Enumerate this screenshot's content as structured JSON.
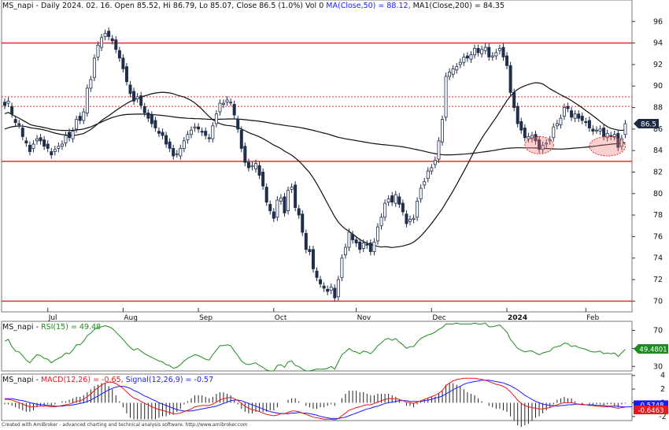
{
  "chart_data": [
    {
      "type": "candlestick",
      "panel": "price",
      "title": {
        "symbol_text": "MS_napi - Daily 2024. 02. 16. Open 85.52, Hi 86.79, Lo 85.07, Close 86.5 (1.0%) Vol 0",
        "ma50_text": "MA(Close,50) = 88.12,",
        "ma200_text": "MA1(Close,200) = 84.35"
      },
      "ylim": [
        69,
        98
      ],
      "y_ticks": [
        "70",
        "72",
        "74",
        "76",
        "78",
        "80",
        "82",
        "84",
        "86",
        "88",
        "90",
        "92",
        "94",
        "96"
      ],
      "x_tick_labels": [
        {
          "label": "Jul",
          "i": 12
        },
        {
          "label": "Aug",
          "i": 33
        },
        {
          "label": "Sep",
          "i": 54
        },
        {
          "label": "Oct",
          "i": 75
        },
        {
          "label": "Nov",
          "i": 98
        },
        {
          "label": "Dec",
          "i": 119
        },
        {
          "label": "2024",
          "i": 140,
          "bold": true
        },
        {
          "label": "Feb",
          "i": 162
        }
      ],
      "last_price_label": "86.5",
      "horizontal_lines": [
        {
          "y": 94.0,
          "style": "solid",
          "color": "#e03030"
        },
        {
          "y": 89.0,
          "style": "dotted",
          "color": "#e03030"
        },
        {
          "y": 88.1,
          "style": "dotted",
          "color": "#e03030"
        },
        {
          "y": 83.0,
          "style": "solid",
          "color": "#e03030"
        },
        {
          "y": 70.0,
          "style": "solid",
          "color": "#e03030"
        }
      ],
      "highlight_ellipses": [
        {
          "i": 149,
          "y": 84.5,
          "di": 4,
          "dy": 0.8
        },
        {
          "i": 168,
          "y": 84.4,
          "di": 5,
          "dy": 0.9
        }
      ],
      "close": [
        88.2,
        88.6,
        87.4,
        86.6,
        86.4,
        85.3,
        84.7,
        83.9,
        84.6,
        85.1,
        84.9,
        84.4,
        84.2,
        83.6,
        84.1,
        84.4,
        84.6,
        85.4,
        85.2,
        85.8,
        86.9,
        86.8,
        87.6,
        89.8,
        90.6,
        92.6,
        93.8,
        94.5,
        94.9,
        94.6,
        94.2,
        93.4,
        92.6,
        91.6,
        90.4,
        89.3,
        88.6,
        89.0,
        88.2,
        87.5,
        87.0,
        86.5,
        86.1,
        85.6,
        85.4,
        84.6,
        84.2,
        83.5,
        83.7,
        84.2,
        84.9,
        85.5,
        85.9,
        86.2,
        86.0,
        85.7,
        85.4,
        85.1,
        86.3,
        87.4,
        88.4,
        88.4,
        88.7,
        88.5,
        87.3,
        86.0,
        84.2,
        82.9,
        82.4,
        82.6,
        82.8,
        81.7,
        80.7,
        79.2,
        78.4,
        77.7,
        79.4,
        79.6,
        78.2,
        80.3,
        80.6,
        78.7,
        78.0,
        76.4,
        74.8,
        74.6,
        73.0,
        72.2,
        71.6,
        71.2,
        70.9,
        71.3,
        70.3,
        72.0,
        74.0,
        75.0,
        76.4,
        75.7,
        75.4,
        74.8,
        75.4,
        75.2,
        74.6,
        75.5,
        76.9,
        77.8,
        79.1,
        79.5,
        79.2,
        79.9,
        79.0,
        78.3,
        77.2,
        77.6,
        77.7,
        79.3,
        80.5,
        81.1,
        82.1,
        82.4,
        83.1,
        84.9,
        86.9,
        90.9,
        91.3,
        91.6,
        91.8,
        92.2,
        92.7,
        92.6,
        92.9,
        93.5,
        93.1,
        93.4,
        93.6,
        92.7,
        92.8,
        93.1,
        93.5,
        92.7,
        91.9,
        89.4,
        88.0,
        86.5,
        85.9,
        85.2,
        85.3,
        85.4,
        84.9,
        84.1,
        84.5,
        84.7,
        85.0,
        86.2,
        86.5,
        87.0,
        88.0,
        87.9,
        87.1,
        87.4,
        87.0,
        86.8,
        86.6,
        86.1,
        85.8,
        85.9,
        86.0,
        85.3,
        85.6,
        85.3,
        85.5,
        84.3,
        85.1,
        86.5
      ],
      "open": [
        88.5,
        88.4,
        88.1,
        86.9,
        86.5,
        86.1,
        84.9,
        84.5,
        84.2,
        84.9,
        85.2,
        85.0,
        84.6,
        83.9,
        83.9,
        84.2,
        84.4,
        84.7,
        85.7,
        85.1,
        86.0,
        87.2,
        86.8,
        87.5,
        89.8,
        90.8,
        92.7,
        93.6,
        94.6,
        95.1,
        94.4,
        94.3,
        93.3,
        92.6,
        91.8,
        90.1,
        89.5,
        88.8,
        89.1,
        88.1,
        87.5,
        87.3,
        86.8,
        85.8,
        85.7,
        85.4,
        84.8,
        84.2,
        83.7,
        83.5,
        84.2,
        85.0,
        85.5,
        86.1,
        86.2,
        85.8,
        85.8,
        85.2,
        85.1,
        86.5,
        87.6,
        88.3,
        88.5,
        88.5,
        88.3,
        86.9,
        85.9,
        84.4,
        82.9,
        82.5,
        82.3,
        82.6,
        82.0,
        80.6,
        79.0,
        78.3,
        77.8,
        79.3,
        79.7,
        78.4,
        80.4,
        80.8,
        78.6,
        78.1,
        76.3,
        74.8,
        74.8,
        72.8,
        72.0,
        71.4,
        71.1,
        71.0,
        71.2,
        70.4,
        72.2,
        74.3,
        75.0,
        76.2,
        75.7,
        75.5,
        74.9,
        75.3,
        75.4,
        74.6,
        75.6,
        77.0,
        77.8,
        79.2,
        79.8,
        79.1,
        79.7,
        79.1,
        78.1,
        77.4,
        77.6,
        77.8,
        79.5,
        80.8,
        81.4,
        82.1,
        82.7,
        83.2,
        84.8,
        87.1,
        90.9,
        91.1,
        91.5,
        92.0,
        92.2,
        92.8,
        92.5,
        92.9,
        93.5,
        93.0,
        93.3,
        93.6,
        92.7,
        92.8,
        93.3,
        93.6,
        92.8,
        91.9,
        89.4,
        88.1,
        86.7,
        86.1,
        85.1,
        85.1,
        85.5,
        85.0,
        84.1,
        84.6,
        84.9,
        85.2,
        86.3,
        86.4,
        87.2,
        88.1,
        87.7,
        87.0,
        87.4,
        87.2,
        86.7,
        86.8,
        86.0,
        85.9,
        85.8,
        86.1,
        85.2,
        85.4,
        85.3,
        85.6,
        84.4,
        85.5
      ]
    },
    {
      "type": "line",
      "panel": "rsi",
      "label_text": "MS_napi - RSI(15) = 49.48",
      "last_value_label": "49.4801",
      "ylim": [
        25,
        80
      ],
      "y_ticks": [
        "30",
        "50",
        "70"
      ],
      "values": [
        58,
        60,
        52,
        47,
        46,
        42,
        37,
        34,
        39,
        43,
        42,
        39,
        38,
        34,
        37,
        39,
        41,
        45,
        44,
        48,
        54,
        54,
        58,
        64,
        67,
        71,
        73,
        74,
        75,
        74,
        72,
        68,
        64,
        60,
        55,
        51,
        48,
        50,
        47,
        44,
        42,
        40,
        38,
        36,
        35,
        32,
        31,
        28,
        29,
        32,
        36,
        39,
        41,
        43,
        42,
        40,
        38,
        37,
        43,
        48,
        53,
        53,
        54,
        53,
        47,
        42,
        36,
        33,
        32,
        33,
        34,
        31,
        29,
        26,
        25,
        25,
        31,
        32,
        29,
        35,
        36,
        31,
        30,
        27,
        25,
        25,
        26,
        27,
        27,
        27,
        28,
        30,
        27,
        35,
        43,
        46,
        50,
        47,
        46,
        44,
        47,
        46,
        44,
        48,
        53,
        56,
        60,
        61,
        59,
        61,
        57,
        54,
        50,
        52,
        52,
        57,
        61,
        63,
        65,
        66,
        68,
        71,
        73,
        77,
        77,
        77,
        78,
        77,
        77,
        77,
        77,
        78,
        77,
        77,
        78,
        74,
        74,
        75,
        76,
        72,
        68,
        60,
        55,
        50,
        48,
        46,
        47,
        47,
        45,
        43,
        45,
        46,
        47,
        51,
        52,
        53,
        56,
        55,
        52,
        53,
        51,
        50,
        49,
        47,
        46,
        46,
        47,
        44,
        45,
        44,
        45,
        41,
        45,
        49
      ]
    },
    {
      "type": "line",
      "panel": "macd",
      "label_macd_text": "MS_napi - MACD(12,26) = -0.65,",
      "label_signal_text": "Signal(12,26,9) = -0.57",
      "last_values": [
        "-0.5748",
        "-0.6463"
      ],
      "ylim": [
        -2.6,
        4.2
      ],
      "y_ticks": [
        "-2",
        "0",
        "2",
        "4"
      ],
      "series": [
        {
          "name": "MACD(12,26)",
          "color": "#e8181e",
          "values": [
            0.5,
            0.5,
            0.4,
            0.2,
            0.0,
            -0.2,
            -0.4,
            -0.6,
            -0.6,
            -0.5,
            -0.5,
            -0.5,
            -0.5,
            -0.6,
            -0.6,
            -0.5,
            -0.4,
            -0.3,
            -0.2,
            0.0,
            0.2,
            0.3,
            0.5,
            0.9,
            1.3,
            1.8,
            2.2,
            2.6,
            2.9,
            3.0,
            3.0,
            2.8,
            2.5,
            2.1,
            1.6,
            1.1,
            0.7,
            0.5,
            0.2,
            -0.1,
            -0.3,
            -0.6,
            -0.8,
            -1.0,
            -1.1,
            -1.3,
            -1.4,
            -1.6,
            -1.6,
            -1.5,
            -1.3,
            -1.1,
            -0.9,
            -0.6,
            -0.5,
            -0.4,
            -0.4,
            -0.4,
            -0.2,
            0.1,
            0.4,
            0.6,
            0.7,
            0.8,
            0.6,
            0.3,
            -0.1,
            -0.5,
            -0.8,
            -1.0,
            -1.1,
            -1.3,
            -1.5,
            -1.7,
            -1.8,
            -1.9,
            -1.8,
            -1.6,
            -1.6,
            -1.4,
            -1.2,
            -1.2,
            -1.3,
            -1.5,
            -1.7,
            -1.9,
            -2.1,
            -2.2,
            -2.3,
            -2.4,
            -2.4,
            -2.4,
            -2.5,
            -2.3,
            -1.9,
            -1.5,
            -1.1,
            -0.9,
            -0.7,
            -0.6,
            -0.4,
            -0.3,
            -0.3,
            -0.1,
            0.1,
            0.3,
            0.5,
            0.6,
            0.6,
            0.6,
            0.5,
            0.3,
            0.1,
            0.0,
            -0.1,
            0.1,
            0.3,
            0.5,
            0.7,
            0.9,
            1.1,
            1.4,
            1.8,
            2.5,
            2.9,
            3.2,
            3.4,
            3.5,
            3.6,
            3.6,
            3.6,
            3.6,
            3.5,
            3.4,
            3.3,
            3.1,
            2.9,
            2.7,
            2.6,
            2.4,
            2.1,
            1.6,
            1.0,
            0.4,
            -0.1,
            -0.4,
            -0.6,
            -0.7,
            -0.8,
            -0.9,
            -0.9,
            -0.8,
            -0.7,
            -0.5,
            -0.3,
            -0.1,
            0.0,
            0.0,
            0.0,
            -0.1,
            -0.2,
            -0.3,
            -0.3,
            -0.4,
            -0.4,
            -0.5,
            -0.5,
            -0.6,
            -0.6,
            -0.6,
            -0.7,
            -0.8,
            -0.7,
            -0.65
          ]
        },
        {
          "name": "Signal(12,26,9)",
          "color": "#1a1aff",
          "values": [
            0.6,
            0.6,
            0.6,
            0.5,
            0.4,
            0.3,
            0.2,
            0.0,
            -0.1,
            -0.2,
            -0.3,
            -0.3,
            -0.4,
            -0.4,
            -0.5,
            -0.5,
            -0.5,
            -0.4,
            -0.4,
            -0.3,
            -0.2,
            -0.1,
            0.0,
            0.2,
            0.4,
            0.7,
            1.0,
            1.3,
            1.6,
            1.9,
            2.1,
            2.3,
            2.4,
            2.4,
            2.3,
            2.1,
            1.8,
            1.6,
            1.3,
            1.0,
            0.8,
            0.5,
            0.3,
            0.0,
            -0.2,
            -0.4,
            -0.6,
            -0.8,
            -1.0,
            -1.1,
            -1.2,
            -1.2,
            -1.2,
            -1.1,
            -1.0,
            -0.9,
            -0.8,
            -0.7,
            -0.6,
            -0.5,
            -0.3,
            -0.1,
            0.1,
            0.3,
            0.4,
            0.4,
            0.3,
            0.1,
            -0.1,
            -0.3,
            -0.5,
            -0.7,
            -0.9,
            -1.1,
            -1.3,
            -1.4,
            -1.5,
            -1.6,
            -1.6,
            -1.6,
            -1.5,
            -1.5,
            -1.4,
            -1.5,
            -1.5,
            -1.6,
            -1.7,
            -1.8,
            -2.0,
            -2.1,
            -2.2,
            -2.3,
            -2.3,
            -2.3,
            -2.2,
            -2.1,
            -1.9,
            -1.7,
            -1.5,
            -1.3,
            -1.1,
            -0.9,
            -0.8,
            -0.6,
            -0.5,
            -0.3,
            -0.1,
            0.0,
            0.1,
            0.2,
            0.3,
            0.3,
            0.3,
            0.2,
            0.2,
            0.2,
            0.2,
            0.3,
            0.4,
            0.5,
            0.7,
            0.8,
            1.0,
            1.3,
            1.6,
            1.9,
            2.2,
            2.4,
            2.7,
            2.9,
            3.0,
            3.1,
            3.2,
            3.3,
            3.3,
            3.3,
            3.2,
            3.1,
            3.0,
            2.9,
            2.7,
            2.5,
            2.2,
            1.9,
            1.5,
            1.1,
            0.8,
            0.5,
            0.2,
            0.0,
            -0.2,
            -0.3,
            -0.4,
            -0.4,
            -0.5,
            -0.4,
            -0.4,
            -0.3,
            -0.3,
            -0.2,
            -0.2,
            -0.2,
            -0.3,
            -0.3,
            -0.3,
            -0.4,
            -0.4,
            -0.4,
            -0.5,
            -0.5,
            -0.5,
            -0.5,
            -0.6,
            -0.6,
            -0.6,
            -0.57
          ]
        }
      ]
    }
  ],
  "footer": "Created with AmiBroker - advanced charting and technical analysis software. http://www.amibroker.com"
}
